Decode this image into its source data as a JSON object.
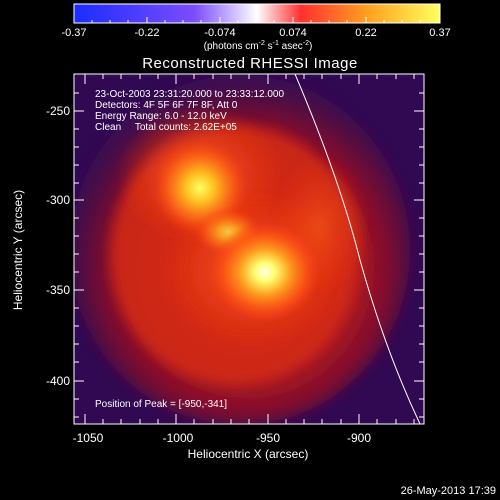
{
  "colorbar": {
    "ticks": [
      "-0.37",
      "-0.22",
      "-0.074",
      "0.074",
      "0.22",
      "0.37"
    ],
    "units_label": "(photons cm",
    "units_sup1": "-2",
    "units_mid1": " s",
    "units_sup2": "-1",
    "units_mid2": " asec",
    "units_sup3": "-2",
    "units_end": ")",
    "colors": {
      "low": "#1a2cff",
      "mid": "#ffffff",
      "high": "#ffff60"
    }
  },
  "title": "Reconstructed RHESSI Image",
  "info": {
    "time": "23-Oct-2003 23:31:20.000 to 23:33:12.000",
    "detectors": "Detectors: 4F 5F 6F 7F 8F, Att 0",
    "energy": "Energy Range: 6.0 - 12.0 keV",
    "clean": "Clean     Total counts: 2.62E+05"
  },
  "peak_label": "Position of Peak = [-950,-341]",
  "y_axis": {
    "label": "Heliocentric  Y (arcsec)",
    "ticks": [
      "-250",
      "-300",
      "-350",
      "-400"
    ]
  },
  "x_axis": {
    "label": "Heliocentric X (arcsec)",
    "ticks": [
      "-1050",
      "-1000",
      "-950",
      "-900"
    ]
  },
  "footer_timestamp": "26-May-2013 17:39"
}
